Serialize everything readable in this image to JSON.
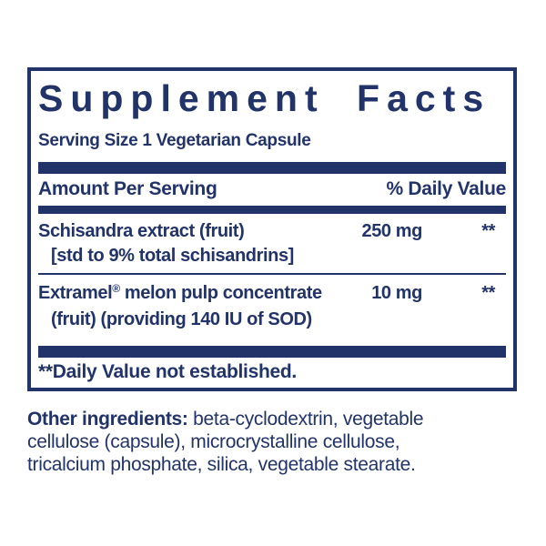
{
  "accent": "#213368",
  "panel": {
    "title": "Supplement Facts",
    "serving_size": "Serving Size 1 Vegetarian Capsule",
    "columns": {
      "amount_header": "Amount Per Serving",
      "dv_header": "% Daily Value"
    },
    "rows": [
      {
        "name": "Schisandra extract (fruit)",
        "detail": "[std to 9% total schisandrins]",
        "amount": "250 mg",
        "dv": "**"
      },
      {
        "name_prefix": "Extramel",
        "reg_mark": "®",
        "name_suffix": " melon pulp concentrate",
        "detail": "(fruit) (providing 140 IU of SOD)",
        "amount": "10 mg",
        "dv": "**"
      }
    ],
    "footnote": "**Daily Value not established."
  },
  "other_ingredients": {
    "label": "Other ingredients:",
    "line1": " beta-cyclodextrin, vegetable",
    "line2": "cellulose (capsule), microcrystalline cellulose,",
    "line3": "tricalcium phosphate, silica, vegetable stearate."
  }
}
